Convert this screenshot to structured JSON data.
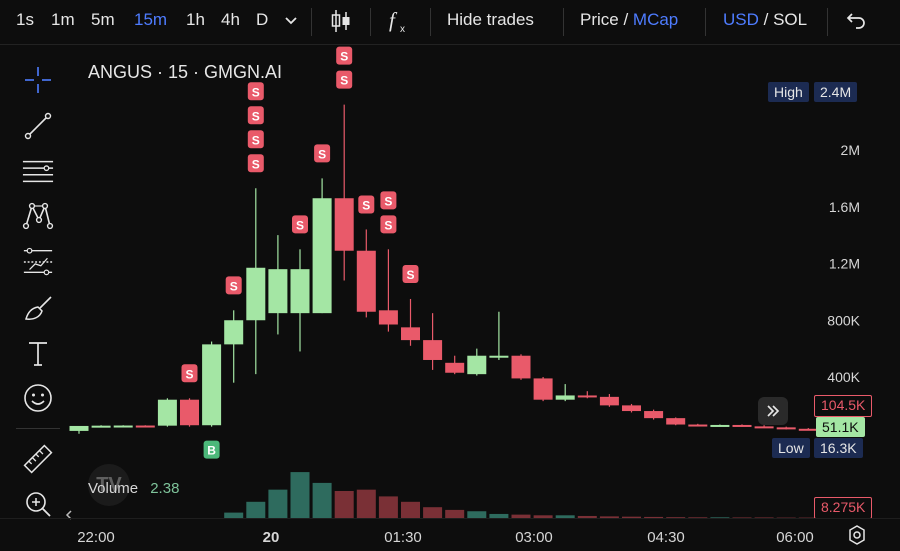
{
  "toolbar": {
    "intervals": [
      "1s",
      "1m",
      "5m",
      "15m",
      "1h",
      "4h",
      "D"
    ],
    "active_interval": "15m",
    "hide_trades": "Hide trades",
    "price": "Price",
    "price_sep": " / ",
    "mcap": "MCap",
    "usd": "USD",
    "currency_sep": " / ",
    "sol": "SOL"
  },
  "chart": {
    "title": "ANGUS · 15 · GMGN.AI",
    "high_label": "High",
    "high_value": "2.4M",
    "low_label": "Low",
    "low_value": "16.3K",
    "price_tag_red": "104.5K",
    "price_tag_green": "51.1K",
    "volume_tag": "8.275K",
    "volume_label": "Volume",
    "volume_value": "2.38",
    "sell_marker": "S",
    "buy_marker": "B",
    "watermark": "TV"
  },
  "colors": {
    "up": "#a4e6a4",
    "down": "#e95a6a",
    "accent": "#4e7cff",
    "vol_up": "#2e6b5e",
    "vol_down": "#7a3036",
    "background": "#0d0d0d"
  },
  "chart_data": {
    "type": "candlestick",
    "y_axis_labels": [
      "2M",
      "1.6M",
      "1.2M",
      "800K",
      "400K"
    ],
    "y_axis_values": [
      2000000,
      1600000,
      1200000,
      800000,
      400000
    ],
    "x_axis_labels": [
      "22:00",
      "20",
      "01:30",
      "03:00",
      "04:30",
      "06:00"
    ],
    "candles": [
      {
        "o": 20000,
        "h": 50000,
        "l": 0,
        "c": 55000
      },
      {
        "o": 55000,
        "h": 60000,
        "l": 50000,
        "c": 57000
      },
      {
        "o": 57000,
        "h": 60000,
        "l": 52000,
        "c": 58000
      },
      {
        "o": 58000,
        "h": 60000,
        "l": 55000,
        "c": 57000
      },
      {
        "o": 57000,
        "h": 250000,
        "l": 50000,
        "c": 240000
      },
      {
        "o": 240000,
        "h": 250000,
        "l": 50000,
        "c": 60000
      },
      {
        "o": 60000,
        "h": 650000,
        "l": 50000,
        "c": 630000
      },
      {
        "o": 630000,
        "h": 870000,
        "l": 360000,
        "c": 800000
      },
      {
        "o": 800000,
        "h": 1730000,
        "l": 420000,
        "c": 1170000
      },
      {
        "o": 850000,
        "h": 1400000,
        "l": 700000,
        "c": 1160000
      },
      {
        "o": 850000,
        "h": 1300000,
        "l": 580000,
        "c": 1160000
      },
      {
        "o": 850000,
        "h": 1800000,
        "l": 850000,
        "c": 1660000
      },
      {
        "o": 1660000,
        "h": 2320000,
        "l": 1080000,
        "c": 1290000
      },
      {
        "o": 1290000,
        "h": 1440000,
        "l": 820000,
        "c": 860000
      },
      {
        "o": 870000,
        "h": 1300000,
        "l": 720000,
        "c": 770000
      },
      {
        "o": 750000,
        "h": 950000,
        "l": 620000,
        "c": 660000
      },
      {
        "o": 660000,
        "h": 850000,
        "l": 450000,
        "c": 520000
      },
      {
        "o": 500000,
        "h": 550000,
        "l": 420000,
        "c": 430000
      },
      {
        "o": 420000,
        "h": 600000,
        "l": 410000,
        "c": 550000
      },
      {
        "o": 540000,
        "h": 860000,
        "l": 520000,
        "c": 550000
      },
      {
        "o": 550000,
        "h": 560000,
        "l": 380000,
        "c": 390000
      },
      {
        "o": 390000,
        "h": 400000,
        "l": 230000,
        "c": 240000
      },
      {
        "o": 240000,
        "h": 350000,
        "l": 230000,
        "c": 270000
      },
      {
        "o": 270000,
        "h": 300000,
        "l": 250000,
        "c": 260000
      },
      {
        "o": 260000,
        "h": 280000,
        "l": 190000,
        "c": 200000
      },
      {
        "o": 200000,
        "h": 210000,
        "l": 150000,
        "c": 160000
      },
      {
        "o": 160000,
        "h": 170000,
        "l": 100000,
        "c": 110000
      },
      {
        "o": 110000,
        "h": 115000,
        "l": 60000,
        "c": 65000
      },
      {
        "o": 65000,
        "h": 70000,
        "l": 55000,
        "c": 60000
      },
      {
        "o": 60000,
        "h": 65000,
        "l": 52000,
        "c": 62000
      },
      {
        "o": 62000,
        "h": 66000,
        "l": 50000,
        "c": 52000
      },
      {
        "o": 52000,
        "h": 60000,
        "l": 40000,
        "c": 45000
      },
      {
        "o": 45000,
        "h": 50000,
        "l": 30000,
        "c": 35000
      },
      {
        "o": 35000,
        "h": 40000,
        "l": 25000,
        "c": 28000
      },
      {
        "o": 40000,
        "h": 80000,
        "l": 38000,
        "c": 60000
      }
    ],
    "volume": [
      0,
      0,
      0,
      0,
      0,
      0,
      0,
      0.4,
      1.2,
      2.1,
      3.4,
      2.6,
      2.0,
      2.1,
      1.6,
      1.2,
      0.8,
      0.6,
      0.5,
      0.3,
      0.25,
      0.2,
      0.2,
      0.15,
      0.12,
      0.1,
      0.08,
      0.06,
      0.05,
      0.05,
      0.04,
      0.04,
      0.03,
      0.03,
      0.03
    ],
    "markers": [
      {
        "type": "sell",
        "candle": 5
      },
      {
        "type": "sell",
        "candle": 7
      },
      {
        "type": "sell",
        "candle": 8
      },
      {
        "type": "sell",
        "candle": 8
      },
      {
        "type": "sell",
        "candle": 8
      },
      {
        "type": "sell",
        "candle": 8
      },
      {
        "type": "sell",
        "candle": 10
      },
      {
        "type": "sell",
        "candle": 11
      },
      {
        "type": "sell",
        "candle": 12
      },
      {
        "type": "sell",
        "candle": 12
      },
      {
        "type": "sell",
        "candle": 13
      },
      {
        "type": "sell",
        "candle": 14
      },
      {
        "type": "sell",
        "candle": 14
      },
      {
        "type": "sell",
        "candle": 15
      },
      {
        "type": "buy",
        "candle": 6
      }
    ]
  }
}
